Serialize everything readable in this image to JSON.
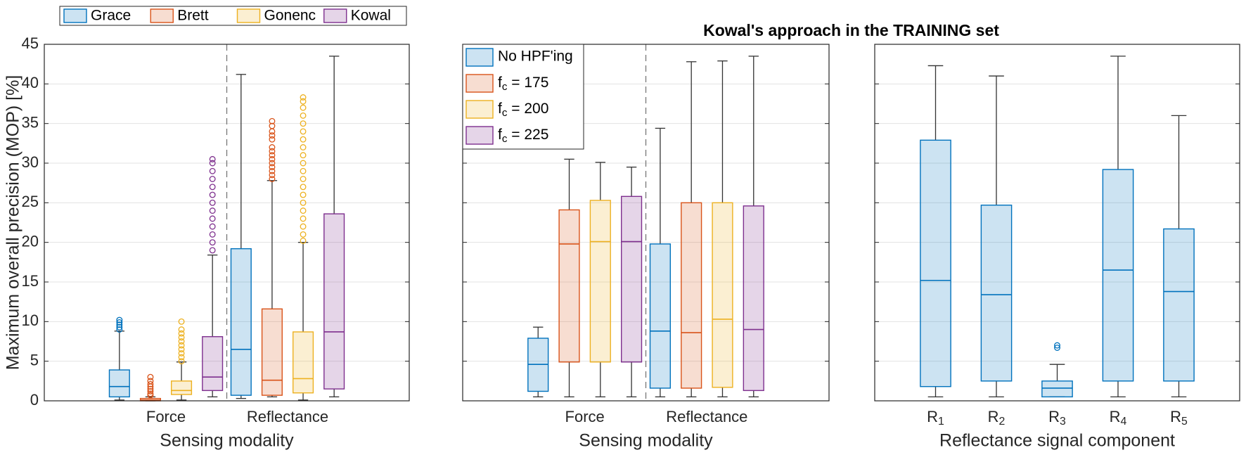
{
  "chart_data": [
    {
      "type": "box",
      "ylabel": "Maximum overall precision (MOP) [%]",
      "xlabel": "Sensing modality",
      "categories": [
        "Force",
        "Reflectance"
      ],
      "ylim": [
        0,
        45
      ],
      "yticks": [
        0,
        5,
        10,
        15,
        20,
        25,
        30,
        35,
        40,
        45
      ],
      "grid": true,
      "ytick_labels": true,
      "category_dividers": true,
      "legend": "above",
      "series": [
        {
          "name": "Grace",
          "color": "#0072BD",
          "boxes": [
            {
              "whislo": 0.1,
              "q1": 0.5,
              "med": 1.8,
              "q3": 3.9,
              "whishi": 8.8,
              "fliers": [
                9.0,
                9.3,
                9.6,
                9.9,
                10.2
              ]
            },
            {
              "whislo": 0.3,
              "q1": 0.7,
              "med": 6.5,
              "q3": 19.2,
              "whishi": 41.2,
              "fliers": []
            }
          ]
        },
        {
          "name": "Brett",
          "color": "#D95319",
          "boxes": [
            {
              "whislo": 0,
              "q1": 0,
              "med": 0.1,
              "q3": 0.3,
              "whishi": 0.5,
              "fliers": [
                0.7,
                0.9,
                1.2,
                1.5,
                1.8,
                2.1,
                2.5,
                3.0
              ]
            },
            {
              "whislo": 0.5,
              "q1": 0.7,
              "med": 2.6,
              "q3": 11.6,
              "whishi": 27.8,
              "fliers": [
                28.0,
                28.5,
                29.0,
                29.5,
                30.0,
                30.5,
                31.0,
                31.5,
                32.0,
                33.0,
                33.5,
                34.0,
                34.7,
                35.3
              ]
            }
          ]
        },
        {
          "name": "Gonenc",
          "color": "#EDB120",
          "boxes": [
            {
              "whislo": 0.1,
              "q1": 0.8,
              "med": 1.3,
              "q3": 2.5,
              "whishi": 4.9,
              "fliers": [
                5.0,
                5.5,
                6.0,
                6.5,
                7.0,
                7.5,
                8.0,
                8.5,
                9.0,
                10.0
              ]
            },
            {
              "whislo": 0.1,
              "q1": 1.0,
              "med": 2.8,
              "q3": 8.7,
              "whishi": 20.0,
              "fliers": [
                20.2,
                21.0,
                22.0,
                23.0,
                24.0,
                25.0,
                26.0,
                27.0,
                28.0,
                29.0,
                30.0,
                31.0,
                32.0,
                33.0,
                34.0,
                35.0,
                36.0,
                37.0,
                37.8,
                38.3
              ]
            }
          ]
        },
        {
          "name": "Kowal",
          "color": "#7E2F8E",
          "boxes": [
            {
              "whislo": 0.5,
              "q1": 1.3,
              "med": 3.0,
              "q3": 8.1,
              "whishi": 18.4,
              "fliers": [
                19.0,
                20.0,
                21.0,
                22.0,
                23.0,
                24.0,
                25.0,
                26.0,
                27.0,
                28.0,
                29.0,
                30.0,
                30.5
              ]
            },
            {
              "whislo": 0.5,
              "q1": 1.5,
              "med": 8.7,
              "q3": 23.6,
              "whishi": 43.5,
              "fliers": []
            }
          ]
        }
      ]
    },
    {
      "type": "box",
      "title": "Kowal's approach in the TRAINING set",
      "xlabel": "Sensing modality",
      "categories": [
        "Force",
        "Reflectance"
      ],
      "ylim": [
        0,
        45
      ],
      "yticks": [
        0,
        5,
        10,
        15,
        20,
        25,
        30,
        35,
        40,
        45
      ],
      "grid": true,
      "ytick_labels": false,
      "category_dividers": true,
      "legend": "upper left",
      "series": [
        {
          "name": "No HPF'ing",
          "color": "#0072BD",
          "boxes": [
            {
              "whislo": 0.5,
              "q1": 1.2,
              "med": 4.6,
              "q3": 7.9,
              "whishi": 9.3,
              "fliers": []
            },
            {
              "whislo": 0.5,
              "q1": 1.6,
              "med": 8.8,
              "q3": 19.8,
              "whishi": 34.4,
              "fliers": []
            }
          ]
        },
        {
          "name": "fc = 175",
          "color": "#D95319",
          "boxes": [
            {
              "whislo": 0.5,
              "q1": 4.9,
              "med": 19.8,
              "q3": 24.1,
              "whishi": 30.5,
              "fliers": []
            },
            {
              "whislo": 0.5,
              "q1": 1.6,
              "med": 8.6,
              "q3": 25.0,
              "whishi": 42.8,
              "fliers": []
            }
          ]
        },
        {
          "name": "fc = 200",
          "color": "#EDB120",
          "boxes": [
            {
              "whislo": 0.5,
              "q1": 4.9,
              "med": 20.1,
              "q3": 25.3,
              "whishi": 30.1,
              "fliers": []
            },
            {
              "whislo": 0.5,
              "q1": 1.7,
              "med": 10.3,
              "q3": 25.0,
              "whishi": 42.9,
              "fliers": []
            }
          ]
        },
        {
          "name": "fc = 225",
          "color": "#7E2F8E",
          "boxes": [
            {
              "whislo": 0.5,
              "q1": 4.9,
              "med": 20.1,
              "q3": 25.8,
              "whishi": 29.5,
              "fliers": []
            },
            {
              "whislo": 0.5,
              "q1": 1.3,
              "med": 9.0,
              "q3": 24.6,
              "whishi": 43.5,
              "fliers": []
            }
          ]
        }
      ]
    },
    {
      "type": "box",
      "xlabel": "Reflectance signal component",
      "categories": [
        "R1",
        "R2",
        "R3",
        "R4",
        "R5"
      ],
      "ylim": [
        0,
        45
      ],
      "yticks": [
        0,
        5,
        10,
        15,
        20,
        25,
        30,
        35,
        40,
        45
      ],
      "grid": true,
      "ytick_labels": false,
      "category_dividers": false,
      "series": [
        {
          "color": "#0072BD",
          "boxes": [
            {
              "whislo": 0.5,
              "q1": 1.8,
              "med": 15.2,
              "q3": 32.9,
              "whishi": 42.3,
              "fliers": []
            },
            {
              "whislo": 0.5,
              "q1": 2.5,
              "med": 13.4,
              "q3": 24.7,
              "whishi": 41.0,
              "fliers": []
            },
            {
              "whislo": 0.5,
              "q1": 0.5,
              "med": 1.6,
              "q3": 2.5,
              "whishi": 4.6,
              "fliers": [
                6.7,
                7.0
              ]
            },
            {
              "whislo": 0.5,
              "q1": 2.5,
              "med": 16.5,
              "q3": 29.2,
              "whishi": 43.5,
              "fliers": []
            },
            {
              "whislo": 0.5,
              "q1": 2.5,
              "med": 13.8,
              "q3": 21.7,
              "whishi": 36.0,
              "fliers": []
            }
          ]
        }
      ]
    }
  ]
}
